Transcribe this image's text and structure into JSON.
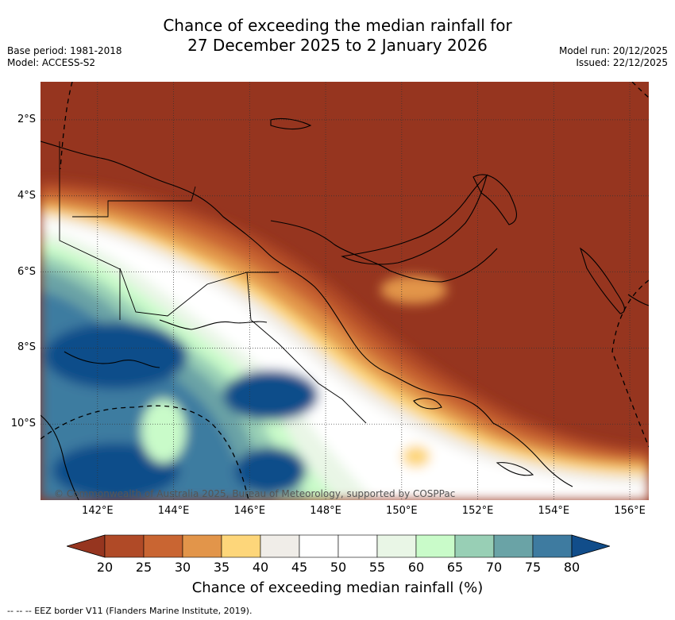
{
  "title_line1": "Chance of exceeding the median rainfall for",
  "title_line2": "27 December 2025 to 2 January 2026",
  "meta_left": {
    "base_period": "Base period: 1981-2018",
    "model": "Model: ACCESS-S2"
  },
  "meta_right": {
    "model_run": "Model run: 20/12/2025",
    "issued": "Issued: 22/12/2025"
  },
  "map": {
    "lon_labels": [
      "142°E",
      "144°E",
      "146°E",
      "148°E",
      "150°E",
      "152°E",
      "154°E",
      "156°E"
    ],
    "lat_labels": [
      "2°S",
      "4°S",
      "6°S",
      "8°S",
      "10°S"
    ],
    "lon_range": [
      140.5,
      156.5
    ],
    "lat_range": [
      -1.0,
      -12.0
    ],
    "copyright": "© Commonwealth of Australia 2025, Bureau of Meteorology, supported by COSPPac"
  },
  "colorbar": {
    "ticks": [
      "20",
      "25",
      "30",
      "35",
      "40",
      "45",
      "50",
      "55",
      "60",
      "65",
      "70",
      "75",
      "80"
    ],
    "colors": [
      "#96351f",
      "#b04a27",
      "#c96532",
      "#e2954a",
      "#fdd67a",
      "#f0ede8",
      "#ffffff",
      "#ffffff",
      "#e9f6e6",
      "#c9fbc9",
      "#98cfb5",
      "#6aa3a6",
      "#3e7ba0",
      "#114d8a"
    ],
    "label": "Chance of exceeding median rainfall (%)"
  },
  "footnote": "--  --  -- EEZ border V11 (Flanders Marine Institute, 2019)."
}
